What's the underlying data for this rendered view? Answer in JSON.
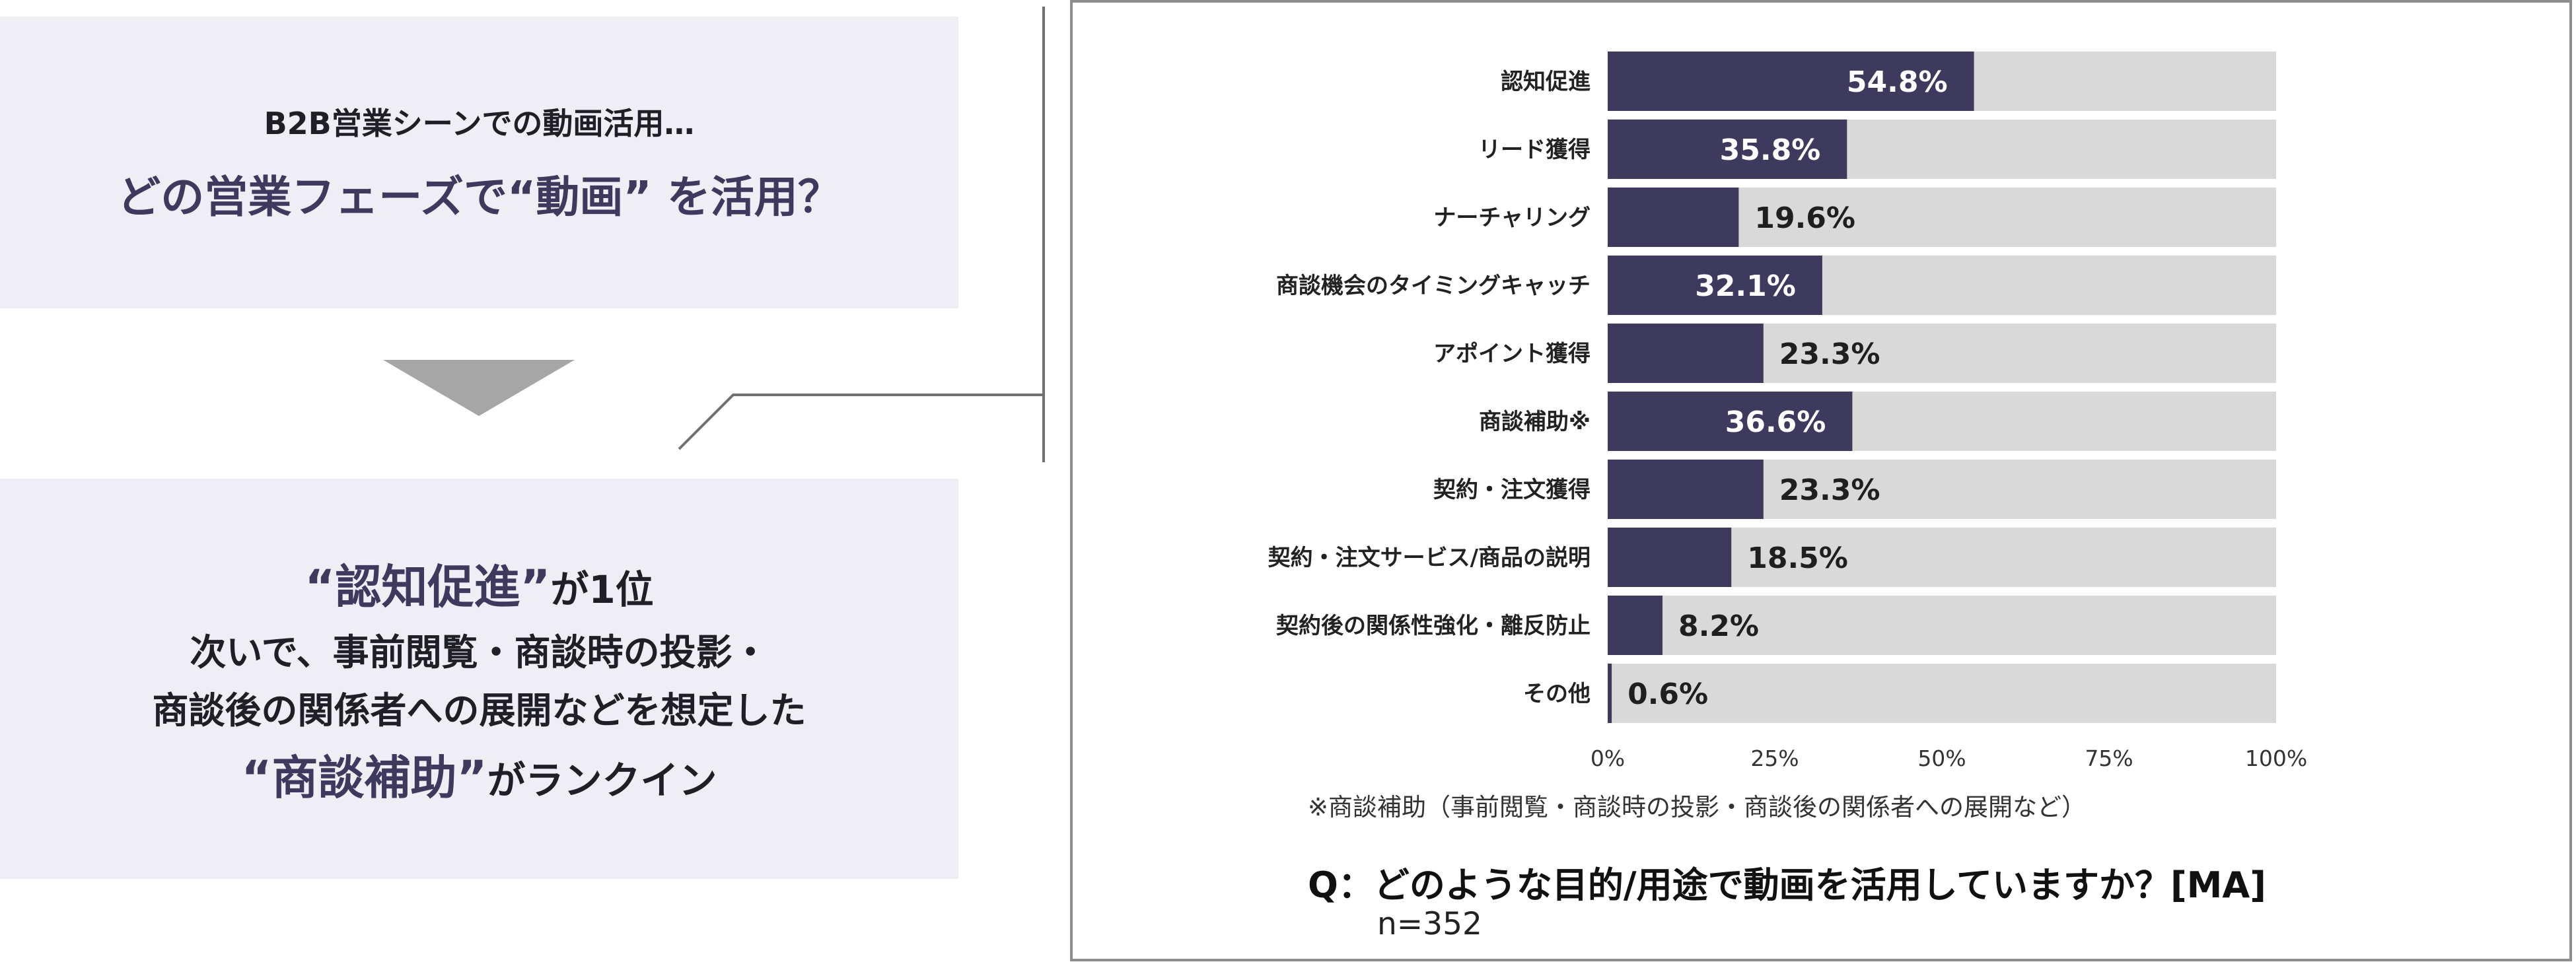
{
  "top_panel": {
    "pre_question": "B2B営業シーンでの動画活用…",
    "question": "どの営業フェーズで“動画” を活用？"
  },
  "conclusion": {
    "line1_highlight": "“認知促進”",
    "line1_tail": "が1位",
    "line2": "次いで、事前閲覧・商談時の投影・",
    "line3": "商談後の関係者への展開などを想定した",
    "line4_highlight": "“商談補助”",
    "line4_tail": "がランクイン"
  },
  "colors": {
    "bar": "#3e3a5e",
    "track": "#d9d9d9",
    "label_on_bar": "#ffffff",
    "label_off_bar": "#1f1f1f",
    "panel_bg": "#efeef5"
  },
  "chart_data": {
    "type": "bar",
    "orientation": "horizontal",
    "categories": [
      "認知促進",
      "リード獲得",
      "ナーチャリング",
      "商談機会のタイミングキャッチ",
      "アポイント獲得",
      "商談補助※",
      "契約・注文獲得",
      "契約・注文サービス/商品の説明",
      "契約後の関係性強化・離反防止",
      "その他"
    ],
    "values": [
      54.8,
      35.8,
      19.6,
      32.1,
      23.3,
      36.6,
      23.3,
      18.5,
      8.2,
      0.6
    ],
    "value_labels": [
      "54.8%",
      "35.8%",
      "19.6%",
      "32.1%",
      "23.3%",
      "36.6%",
      "23.3%",
      "18.5%",
      "8.2%",
      "0.6%"
    ],
    "xlim": [
      0,
      100
    ],
    "x_ticks": [
      "0%",
      "25%",
      "50%",
      "75%",
      "100%"
    ],
    "footnote": "※商談補助（事前閲覧・商談時の投影・商談後の関係者への展開など）",
    "question": "Q：どのような目的/用途で動画を活用していますか？[MA]",
    "sample": "n=352"
  }
}
